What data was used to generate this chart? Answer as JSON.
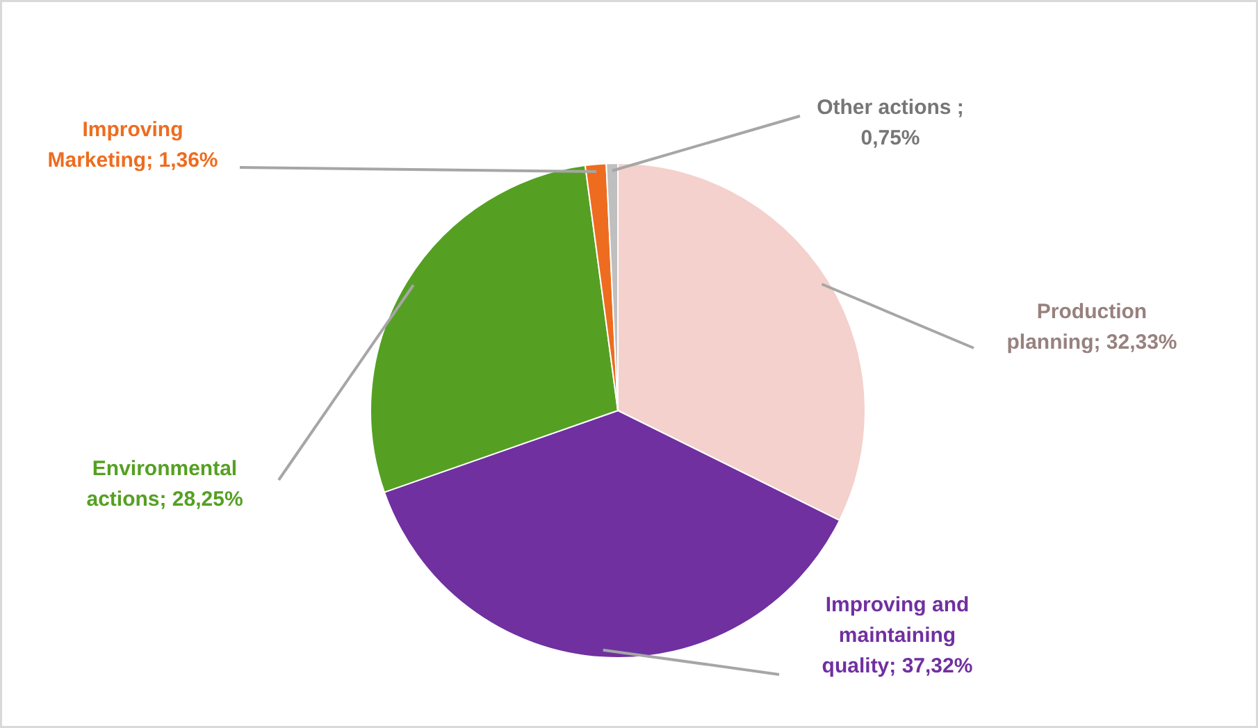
{
  "chart_data": {
    "type": "pie",
    "categories": [
      "Production planning",
      "Improving and maintaining quality",
      "Environmental actions",
      "Improving Marketing",
      "Other actions"
    ],
    "values": [
      32.33,
      37.32,
      28.25,
      1.36,
      0.75
    ],
    "colors": [
      "#f4d1cc",
      "#7030a0",
      "#55a023",
      "#ee6c1f",
      "#bfbfbf"
    ],
    "value_labels": [
      "; 32,33%",
      "; 37,32%",
      "; 28,25%",
      "; 1,36%",
      " ; 0,75%"
    ]
  }
}
